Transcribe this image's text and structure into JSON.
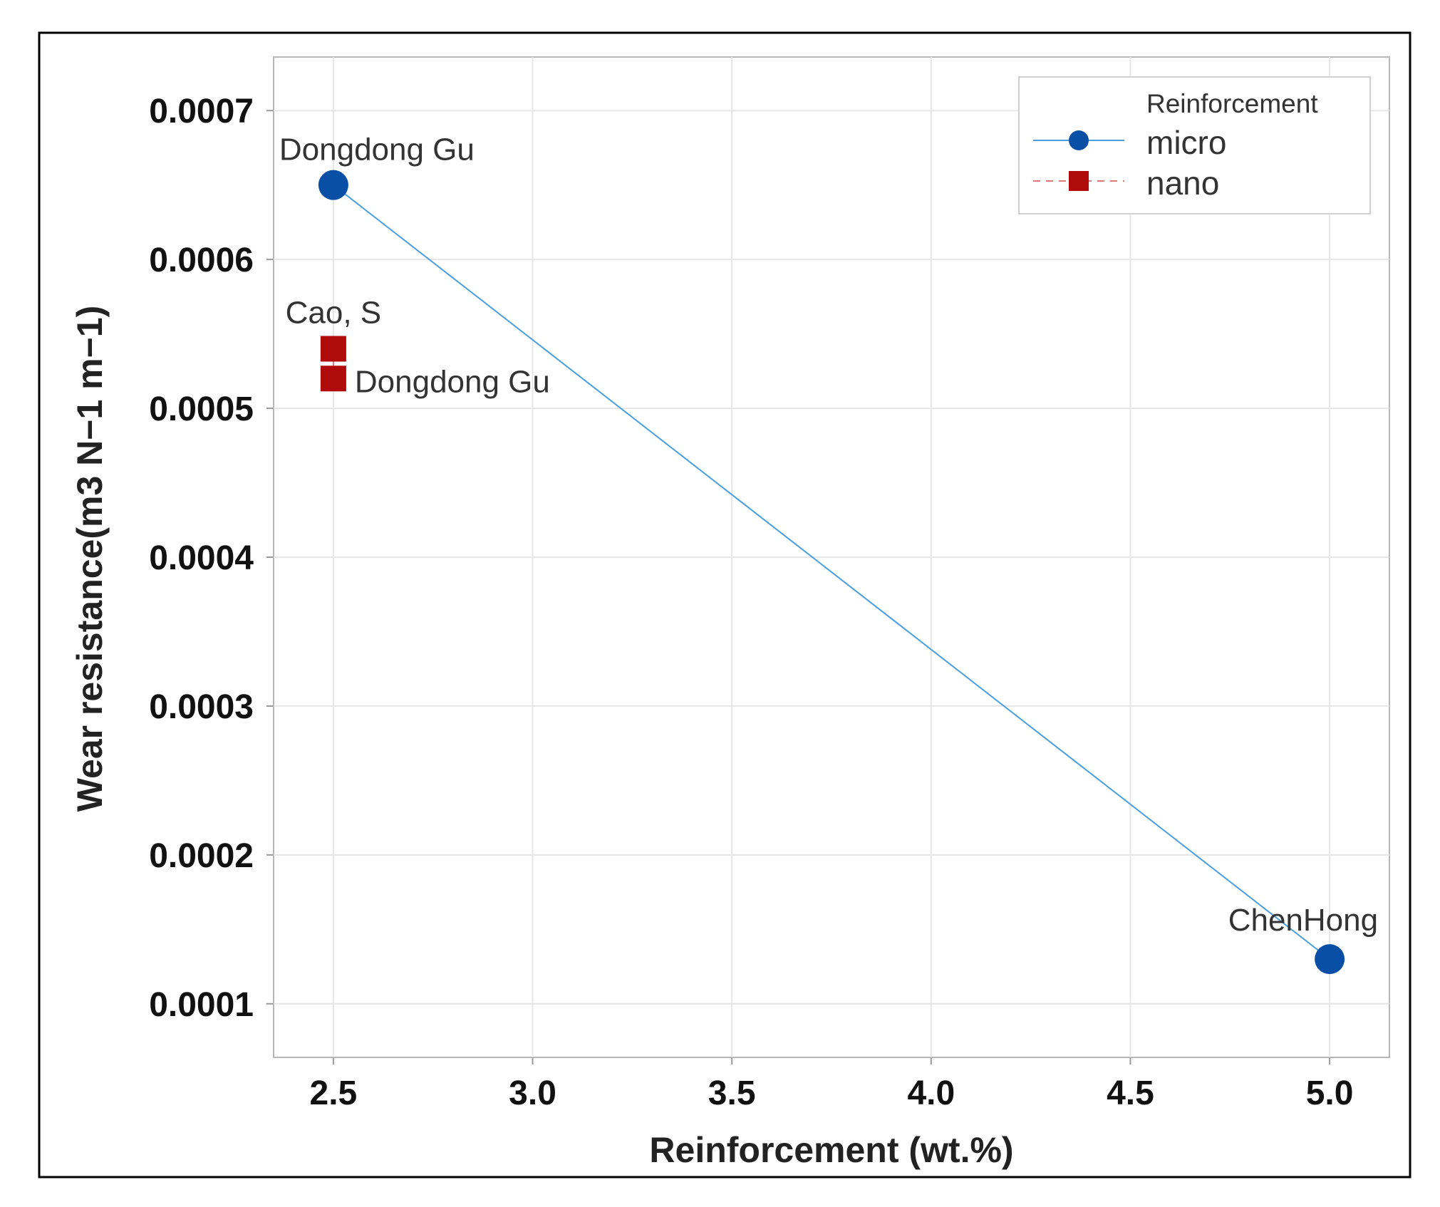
{
  "chart_data": {
    "type": "scatter",
    "title": "",
    "xlabel": "Reinforcement (wt.%)",
    "ylabel": "Wear resistance(m3 N−1 m−1)",
    "xlim": [
      2.35,
      5.15
    ],
    "ylim": [
      6.4e-05,
      0.000736
    ],
    "x_ticks": [
      "2.5",
      "3.0",
      "3.5",
      "4.0",
      "4.5",
      "5.0"
    ],
    "y_ticks": [
      "0.0001",
      "0.0002",
      "0.0003",
      "0.0004",
      "0.0005",
      "0.0006",
      "0.0007"
    ],
    "grid": true,
    "legend": {
      "title": "Reinforcement",
      "position": "top-right",
      "entries": [
        "micro",
        "nano"
      ]
    },
    "series": [
      {
        "name": "micro",
        "color": "#0a4fa6",
        "line_color": "#4a9fe0",
        "marker": "circle",
        "line": "solid",
        "points": [
          {
            "x": 2.5,
            "y": 0.00065,
            "label": "Dongdong Gu",
            "label_pos": "above-right"
          },
          {
            "x": 5.0,
            "y": 0.00013,
            "label": "ChenHong",
            "label_pos": "above-left"
          }
        ]
      },
      {
        "name": "nano",
        "color": "#b00b0b",
        "line_color": "#e07a7a",
        "marker": "square",
        "line": "dashed",
        "points": [
          {
            "x": 2.5,
            "y": 0.00054,
            "label": "Cao, S",
            "label_pos": "above"
          },
          {
            "x": 2.5,
            "y": 0.00052,
            "label": "Dongdong Gu",
            "label_pos": "right"
          }
        ]
      }
    ]
  }
}
